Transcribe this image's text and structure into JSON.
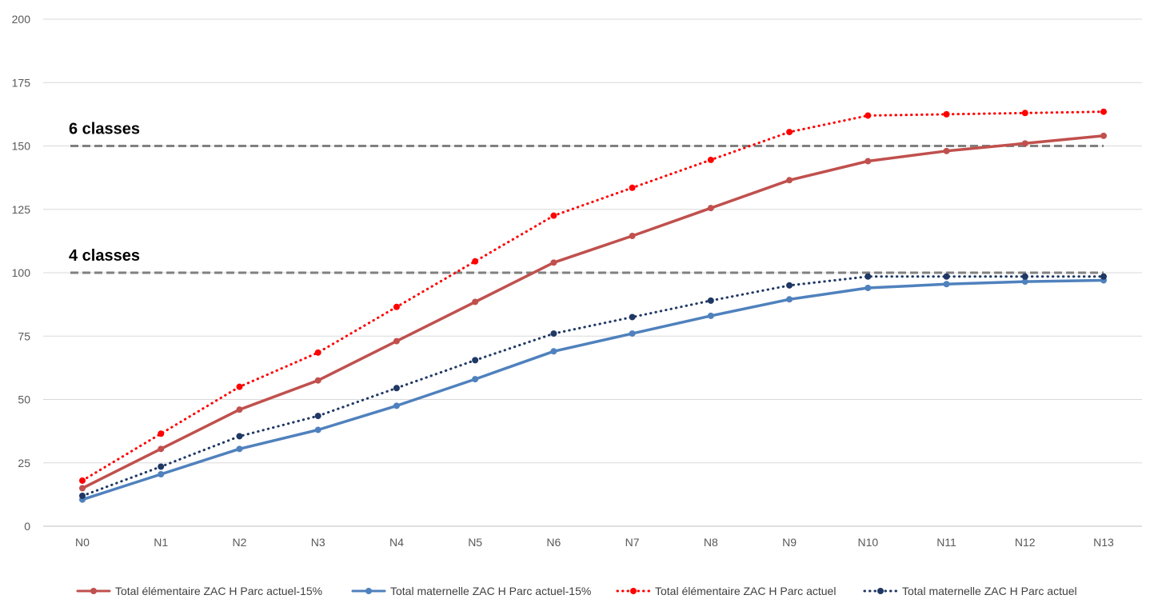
{
  "chart_data": {
    "type": "line",
    "categories": [
      "N0",
      "N1",
      "N2",
      "N3",
      "N4",
      "N5",
      "N6",
      "N7",
      "N8",
      "N9",
      "N10",
      "N11",
      "N12",
      "N13"
    ],
    "ylim": [
      0,
      200
    ],
    "yticks": [
      0,
      25,
      50,
      75,
      100,
      125,
      150,
      175,
      200
    ],
    "grid": true,
    "legend_position": "bottom",
    "series": [
      {
        "name": "Total élémentaire ZAC H Parc actuel-15%",
        "color": "#c0504d",
        "style": "solid",
        "values": [
          15,
          30.5,
          46,
          57.5,
          73,
          88.5,
          104,
          114.5,
          125.5,
          136.5,
          144,
          148,
          151,
          154
        ]
      },
      {
        "name": "Total maternelle ZAC H Parc actuel-15%",
        "color": "#4f81bd",
        "style": "solid",
        "values": [
          10.5,
          20.5,
          30.5,
          38,
          47.5,
          58,
          69,
          76,
          83,
          89.5,
          94,
          95.5,
          96.5,
          97
        ]
      },
      {
        "name": "Total élémentaire ZAC H Parc actuel",
        "color": "#ff0000",
        "style": "dotted",
        "values": [
          18,
          36.5,
          55,
          68.5,
          86.5,
          104.5,
          122.5,
          133.5,
          144.5,
          155.5,
          162,
          162.5,
          163,
          163.5
        ]
      },
      {
        "name": "Total maternelle ZAC H Parc actuel",
        "color": "#1f3864",
        "style": "dotted",
        "values": [
          12,
          23.5,
          35.5,
          43.5,
          54.5,
          65.5,
          76,
          82.5,
          89,
          95,
          98.5,
          98.5,
          98.5,
          98.5
        ]
      }
    ],
    "reference_lines": [
      {
        "value": 150,
        "label": "6 classes",
        "color": "#808080"
      },
      {
        "value": 100,
        "label": "4 classes",
        "color": "#808080"
      }
    ]
  }
}
